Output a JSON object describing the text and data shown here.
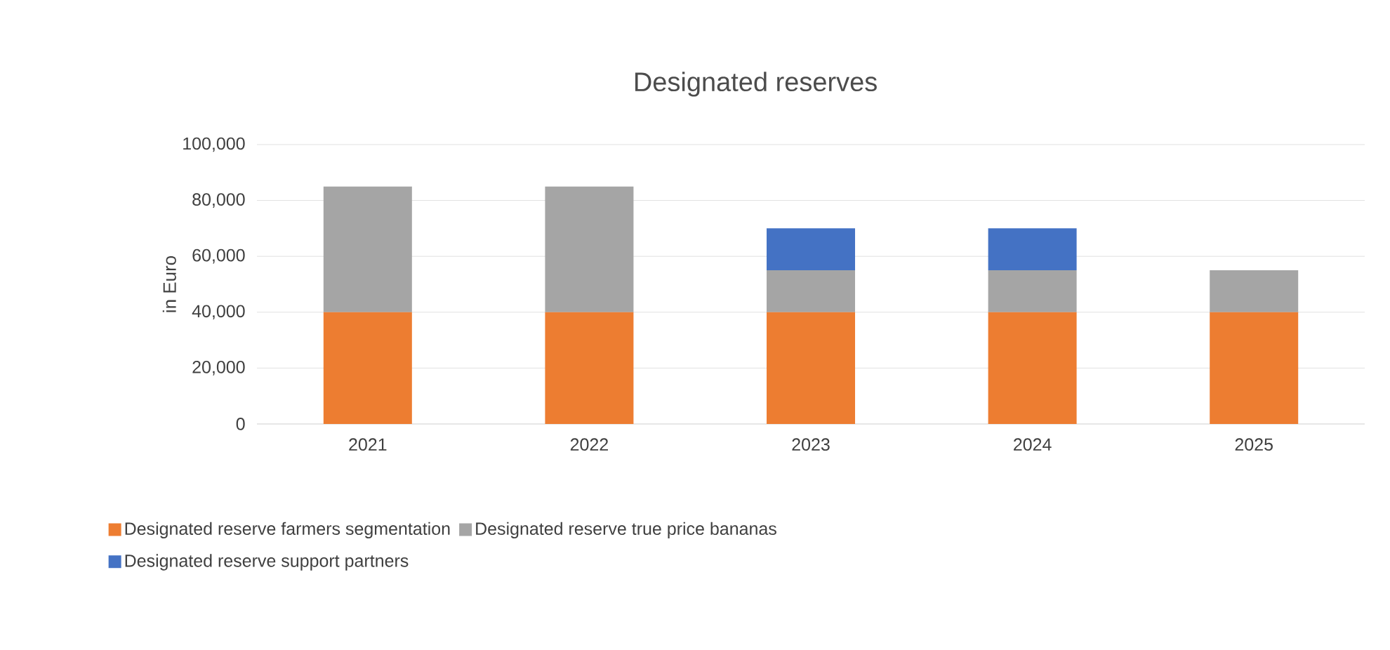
{
  "chart_data": {
    "type": "bar",
    "title": "Designated reserves",
    "ylabel": "in Euro",
    "stacked": true,
    "categories": [
      "2021",
      "2022",
      "2023",
      "2024",
      "2025"
    ],
    "series": [
      {
        "name": "Designated reserve farmers segmentation",
        "color": "#ed7d31",
        "values": [
          40000,
          40000,
          40000,
          40000,
          40000
        ]
      },
      {
        "name": "Designated reserve true price bananas",
        "color": "#a5a5a5",
        "values": [
          45000,
          45000,
          15000,
          15000,
          15000
        ]
      },
      {
        "name": "Designated reserve support partners",
        "color": "#4472c4",
        "values": [
          0,
          0,
          15000,
          15000,
          0
        ]
      }
    ],
    "ylim": [
      0,
      100000
    ],
    "yticks": [
      {
        "value": 0,
        "label": "0"
      },
      {
        "value": 20000,
        "label": "20,000"
      },
      {
        "value": 40000,
        "label": "40,000"
      },
      {
        "value": 60000,
        "label": "60,000"
      },
      {
        "value": 80000,
        "label": "80,000"
      },
      {
        "value": 100000,
        "label": "100,000"
      }
    ],
    "grid": "y",
    "legend": "bottom"
  }
}
